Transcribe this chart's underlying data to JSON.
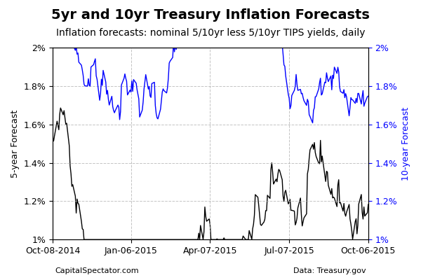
{
  "title": "5yr and 10yr Treasury Inflation Forecasts",
  "subtitle": "Inflation forecasts: nominal 5/10yr less 5/10yr TIPS yields, daily",
  "ylabel_left": "5-year Forecast",
  "ylabel_right": "10-year Forecast",
  "footer_left": "CapitalSpectator.com",
  "footer_right": "Data: Treasury.gov",
  "ylim_left": [
    0.01,
    0.02
  ],
  "ylim_right": [
    0.01,
    0.02
  ],
  "yticks": [
    0.01,
    0.012,
    0.014,
    0.016,
    0.018,
    0.02
  ],
  "yticklabels": [
    "1%",
    "1.2%",
    "1.4%",
    "1.6%",
    "1.8%",
    "2%"
  ],
  "xtick_labels": [
    "Oct-08-2014",
    "Jan-06-2015",
    "Apr-07-2015",
    "Jul-07-2015",
    "Oct-06-2015"
  ],
  "color_5yr": "#000000",
  "color_10yr": "#0000ff",
  "line_width": 1.0,
  "background_color": "#ffffff",
  "grid_color": "#aaaaaa",
  "title_fontsize": 14,
  "subtitle_fontsize": 10,
  "label_fontsize": 9
}
